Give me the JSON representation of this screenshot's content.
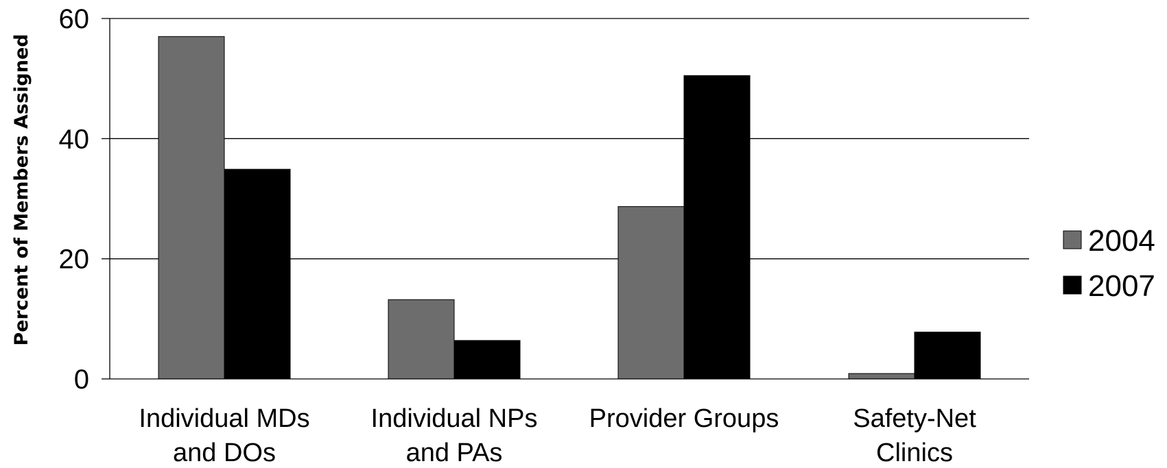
{
  "chart_data": {
    "type": "bar",
    "title": "",
    "xlabel": "",
    "ylabel": "Percent of Members Assigned",
    "ylim": [
      0,
      60
    ],
    "yticks": [
      0,
      20,
      40,
      60
    ],
    "ytick_labels": [
      "0",
      "20",
      "40",
      "60"
    ],
    "grid": true,
    "legend_position": "right",
    "categories": [
      [
        "Individual MDs",
        "and DOs"
      ],
      [
        "Individual NPs",
        "and PAs"
      ],
      [
        "Provider Groups"
      ],
      [
        "Safety-Net",
        "Clinics"
      ]
    ],
    "series": [
      {
        "name": "2004",
        "color": "#6d6d6d",
        "values": [
          57.0,
          13.2,
          28.7,
          0.9
        ]
      },
      {
        "name": "2007",
        "color": "#000000",
        "values": [
          34.9,
          6.4,
          50.5,
          7.8
        ]
      }
    ]
  }
}
